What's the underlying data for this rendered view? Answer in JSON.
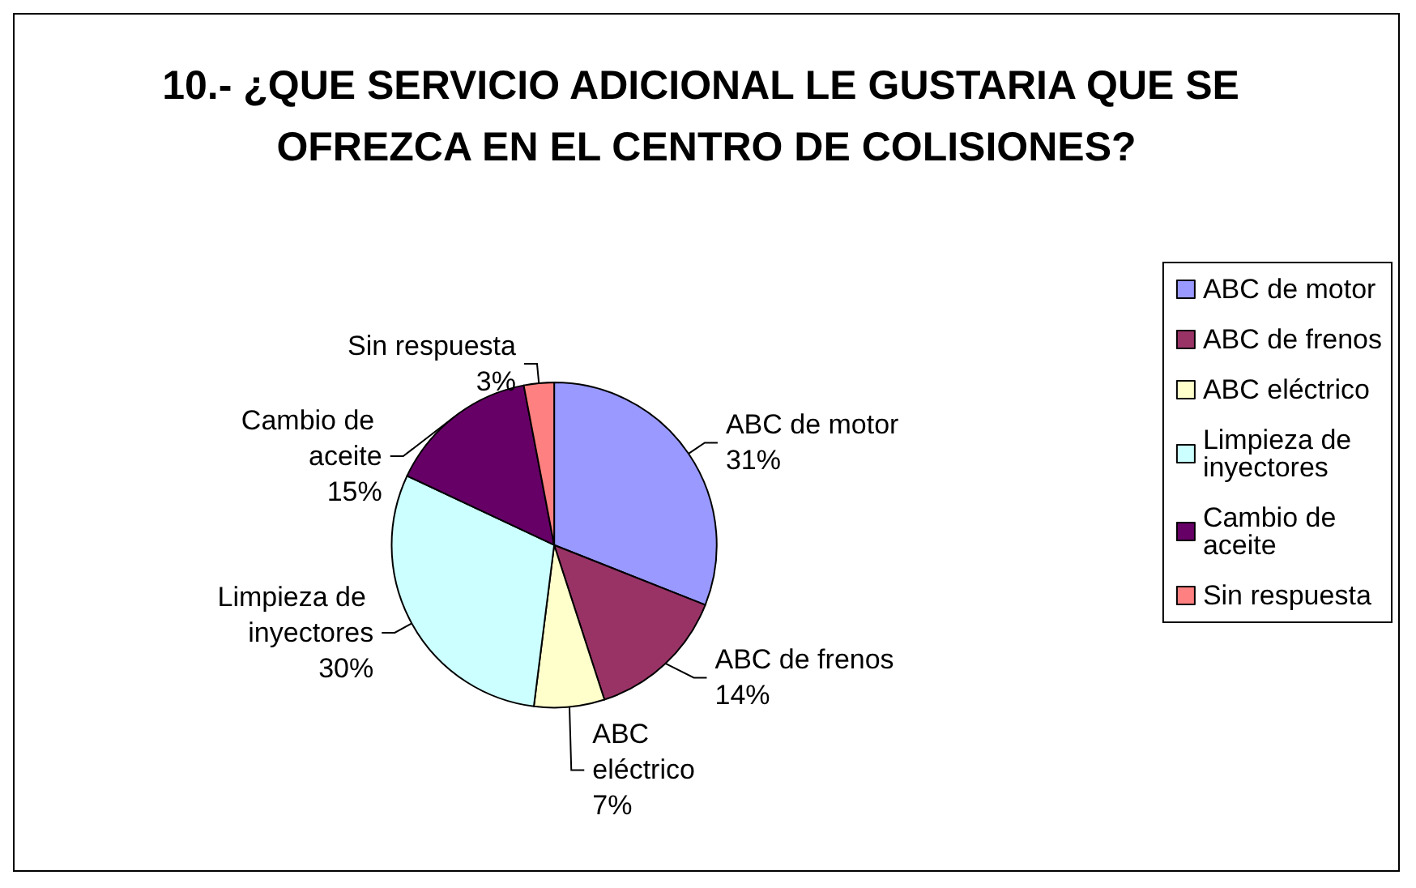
{
  "chart_data": {
    "type": "pie",
    "title": "10.- ¿QUE SERVICIO ADICIONAL LE GUSTARIA QUE SE OFREZCA EN EL CENTRO DE COLISIONES?",
    "categories": [
      "ABC de motor",
      "ABC de frenos",
      "ABC eléctrico",
      "Limpieza de inyectores",
      "Cambio de aceite",
      "Sin respuesta"
    ],
    "values": [
      31,
      14,
      7,
      30,
      15,
      3
    ],
    "value_labels": [
      "31%",
      "14%",
      "7%",
      "30%",
      "15%",
      "3%"
    ],
    "colors": [
      "#9999ff",
      "#993366",
      "#ffffcc",
      "#ccffff",
      "#660066",
      "#ff8080"
    ],
    "legend": "right"
  }
}
